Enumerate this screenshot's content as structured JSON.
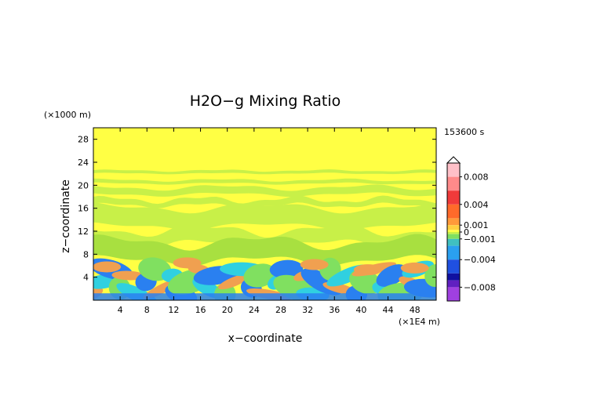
{
  "chart_data": {
    "type": "heatmap",
    "title": "H2O−g Mixing Ratio",
    "xlabel": "x−coordinate",
    "ylabel": "z−coordinate",
    "x_unit": "(×1E4 m)",
    "y_unit": "(×1000 m)",
    "time_label": "153600 s",
    "xlim": [
      0,
      51.2
    ],
    "ylim": [
      0,
      30
    ],
    "x_ticks": [
      "4",
      "8",
      "12",
      "16",
      "20",
      "24",
      "28",
      "32",
      "36",
      "40",
      "44",
      "48"
    ],
    "y_ticks": [
      "4",
      "8",
      "12",
      "16",
      "20",
      "24",
      "28"
    ],
    "x_tick_values": [
      4,
      8,
      12,
      16,
      20,
      24,
      28,
      32,
      36,
      40,
      44,
      48
    ],
    "y_tick_values": [
      4,
      8,
      12,
      16,
      20,
      24,
      28
    ],
    "colorbar": {
      "range": [
        -0.01,
        0.01
      ],
      "labels": [
        "0.008",
        "0.004",
        "0.001",
        "0",
        "−0.001",
        "−0.004",
        "−0.008"
      ],
      "label_values": [
        0.008,
        0.004,
        0.001,
        0,
        -0.001,
        -0.004,
        -0.008
      ],
      "stops": [
        {
          "v": 0.01,
          "c": "#ffc0c8"
        },
        {
          "v": 0.008,
          "c": "#ff8a8a"
        },
        {
          "v": 0.006,
          "c": "#f03a3a"
        },
        {
          "v": 0.004,
          "c": "#ff6a2a"
        },
        {
          "v": 0.002,
          "c": "#ff9a3a"
        },
        {
          "v": 0.001,
          "c": "#ffd040"
        },
        {
          "v": 0.0003,
          "c": "#ffff44"
        },
        {
          "v": 0.0,
          "c": "#c8f048"
        },
        {
          "v": -0.0003,
          "c": "#80e060"
        },
        {
          "v": -0.001,
          "c": "#40c0c0"
        },
        {
          "v": -0.002,
          "c": "#2aa0f0"
        },
        {
          "v": -0.004,
          "c": "#2050e0"
        },
        {
          "v": -0.006,
          "c": "#1010a0"
        },
        {
          "v": -0.007,
          "c": "#6020c0"
        },
        {
          "v": -0.008,
          "c": "#a040e0"
        },
        {
          "v": -0.01,
          "c": "#ff20c0"
        }
      ]
    },
    "field_colors": {
      "background": "#ffff44",
      "band": "#c8f048",
      "band_dark": "#a8e040",
      "low_orange": "#f0a050",
      "low_cyan": "#30d0e0",
      "low_blue": "#2a80f0",
      "low_green": "#80e060"
    }
  }
}
